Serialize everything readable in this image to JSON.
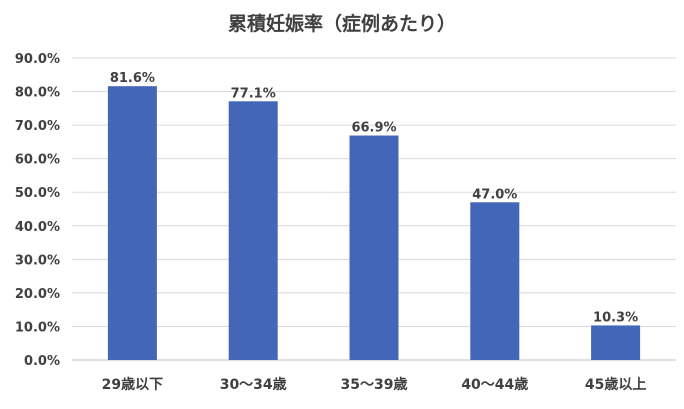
{
  "chart_data": {
    "type": "bar",
    "title": "累積妊娠率（症例あたり）",
    "categories": [
      "29歳以下",
      "30～34歳",
      "35～39歳",
      "40～44歳",
      "45歳以上"
    ],
    "values": [
      81.6,
      77.1,
      66.9,
      47.0,
      10.3
    ],
    "data_labels": [
      "81.6%",
      "77.1%",
      "66.9%",
      "47.0%",
      "10.3%"
    ],
    "y_ticks": [
      "0.0%",
      "10.0%",
      "20.0%",
      "30.0%",
      "40.0%",
      "50.0%",
      "60.0%",
      "70.0%",
      "80.0%",
      "90.0%"
    ],
    "ylim": [
      0,
      90
    ],
    "xlabel": "",
    "ylabel": "",
    "grid": true,
    "legend": "none",
    "colors": {
      "bar": "#4466b8",
      "grid": "#d9d9d9",
      "text": "#404040"
    }
  }
}
